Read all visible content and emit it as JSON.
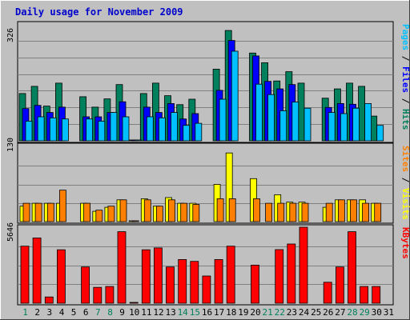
{
  "chart_data": {
    "type": "bar",
    "title": "Daily usage for November 2009",
    "days": [
      "1",
      "2",
      "3",
      "4",
      "5",
      "6",
      "7",
      "8",
      "9",
      "10",
      "11",
      "12",
      "13",
      "14",
      "15",
      "16",
      "17",
      "18",
      "19",
      "20",
      "21",
      "22",
      "23",
      "24",
      "25",
      "26",
      "27",
      "28",
      "29",
      "30",
      "31"
    ],
    "weekend_days": [
      "1",
      "7",
      "8",
      "14",
      "15",
      "21",
      "22",
      "28",
      "29"
    ],
    "colors": {
      "hits": "#00805c",
      "files": "#0000ff",
      "pages": "#00c0ff",
      "visits": "#ffff00",
      "sites": "#ff8000",
      "kbytes": "#ff0000",
      "weekday_label": "#000000",
      "weekend_label": "#00805c"
    },
    "panels": [
      {
        "id": "top",
        "max_label": "326",
        "ylim": [
          0,
          326
        ],
        "right_label": [
          {
            "text": "Pages",
            "color": "#00c0ff"
          },
          {
            "text": " / ",
            "color": "#000000"
          },
          {
            "text": "Files",
            "color": "#0000ff"
          },
          {
            "text": " / ",
            "color": "#000000"
          },
          {
            "text": "Hits",
            "color": "#00805c"
          }
        ],
        "series": [
          {
            "name": "Hits",
            "key": "hits",
            "values": [
              132,
              152,
              97,
              161,
              0,
              123,
              94,
              117,
              157,
              2,
              132,
              161,
              126,
              101,
              116,
              0,
              200,
              308,
              0,
              245,
              218,
              167,
              193,
              161,
              0,
              119,
              145,
              161,
              152,
              69,
              0
            ]
          },
          {
            "name": "Files",
            "key": "files",
            "values": [
              90,
              99,
              79,
              94,
              0,
              67,
              67,
              79,
              109,
              2,
              94,
              79,
              104,
              61,
              76,
              0,
              141,
              280,
              0,
              237,
              166,
              145,
              157,
              0,
              0,
              93,
              104,
              102,
              0,
              0,
              0
            ]
          },
          {
            "name": "Pages",
            "key": "pages",
            "values": [
              55,
              67,
              64,
              61,
              0,
              61,
              55,
              79,
              67,
              2,
              67,
              64,
              79,
              43,
              49,
              0,
              116,
              250,
              0,
              158,
              129,
              84,
              108,
              91,
              0,
              79,
              76,
              91,
              104,
              43,
              0
            ]
          }
        ]
      },
      {
        "id": "middle",
        "max_label": "130",
        "ylim": [
          0,
          130
        ],
        "right_label": [
          {
            "text": "Sites",
            "color": "#ff8000"
          },
          {
            "text": " / ",
            "color": "#000000"
          },
          {
            "text": "Visits",
            "color": "#ffff00"
          }
        ],
        "series": [
          {
            "name": "Visits",
            "key": "visits",
            "values": [
              27,
              32,
              32,
              32,
              0,
              32,
              18,
              25,
              38,
              1,
              40,
              27,
              42,
              32,
              32,
              0,
              65,
              120,
              0,
              75,
              0,
              47,
              34,
              34,
              0,
              25,
              38,
              38,
              38,
              32,
              0
            ]
          },
          {
            "name": "Sites",
            "key": "sites",
            "values": [
              32,
              32,
              32,
              55,
              0,
              32,
              20,
              27,
              38,
              1,
              38,
              27,
              38,
              32,
              30,
              0,
              40,
              40,
              0,
              40,
              32,
              32,
              32,
              32,
              0,
              32,
              38,
              38,
              32,
              32,
              0
            ]
          }
        ]
      },
      {
        "id": "bottom",
        "max_label": "5646",
        "ylim": [
          0,
          5646
        ],
        "right_label": [
          {
            "text": "KBytes",
            "color": "#ff0000"
          }
        ],
        "series": [
          {
            "name": "KBytes",
            "key": "kbytes",
            "values": [
              4239,
              4850,
              465,
              3969,
              0,
              2691,
              1176,
              1243,
              5314,
              21,
              3969,
              4104,
              2691,
              3245,
              3111,
              2021,
              3245,
              4238,
              0,
              2827,
              0,
              3982,
              4399,
              5646,
              0,
              1557,
              2691,
              5314,
              1243,
              1243,
              0
            ]
          }
        ]
      }
    ]
  }
}
